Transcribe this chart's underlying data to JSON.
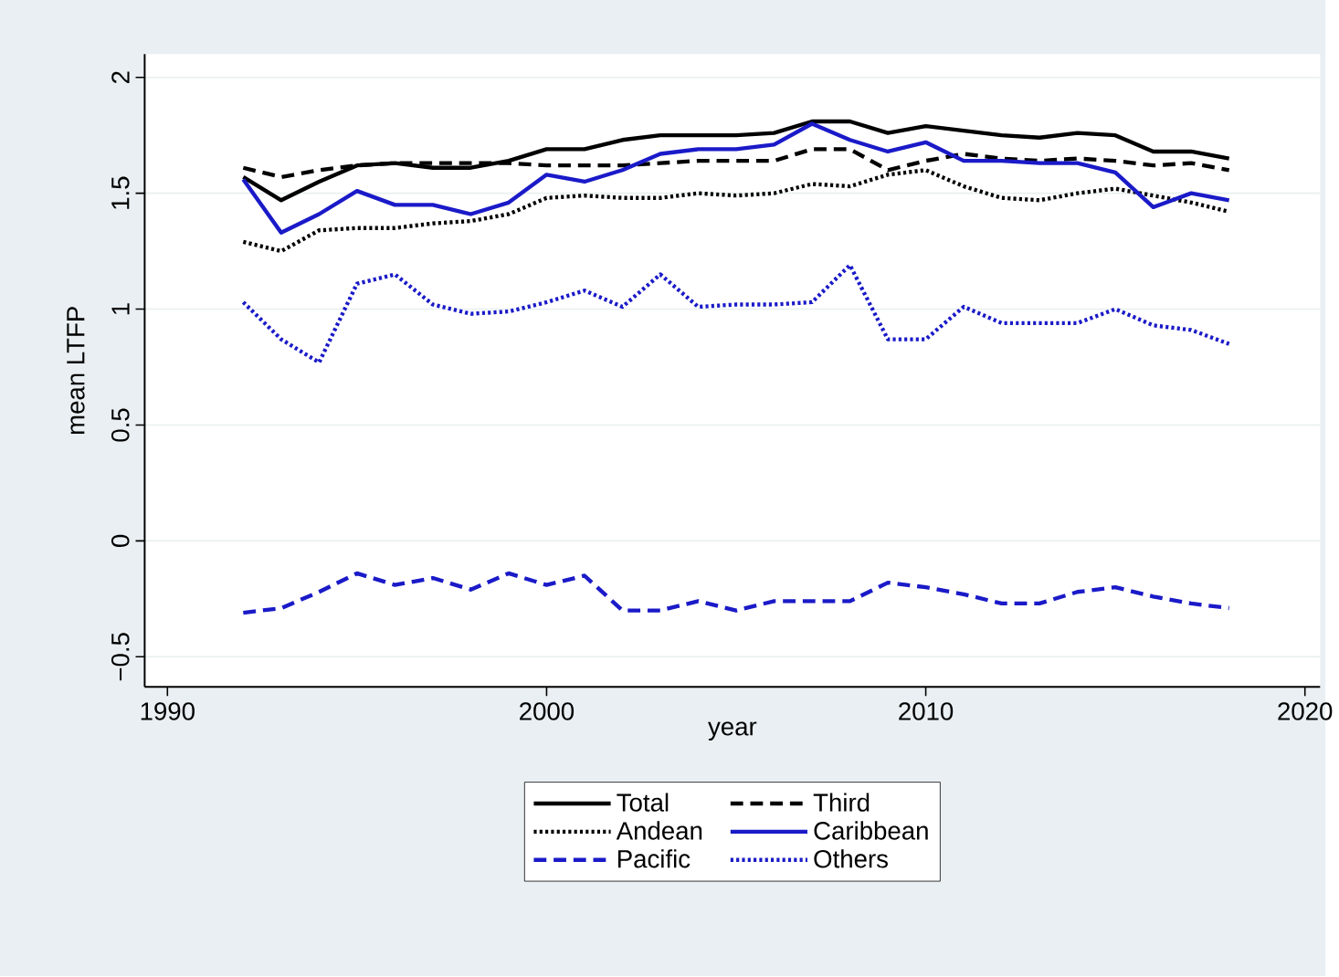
{
  "chart_data": {
    "type": "line",
    "xlabel": "year",
    "ylabel": "mean LTFP",
    "x": [
      1992,
      1993,
      1994,
      1995,
      1996,
      1997,
      1998,
      1999,
      2000,
      2001,
      2002,
      2003,
      2004,
      2005,
      2006,
      2007,
      2008,
      2009,
      2010,
      2011,
      2012,
      2013,
      2014,
      2015,
      2016,
      2017,
      2018
    ],
    "series": [
      {
        "name": "Total",
        "color": "#000000",
        "line_style": "solid",
        "values": [
          1.57,
          1.47,
          1.55,
          1.62,
          1.63,
          1.61,
          1.61,
          1.64,
          1.69,
          1.69,
          1.73,
          1.75,
          1.75,
          1.75,
          1.76,
          1.81,
          1.81,
          1.76,
          1.79,
          1.77,
          1.75,
          1.74,
          1.76,
          1.75,
          1.68,
          1.68,
          1.65
        ]
      },
      {
        "name": "Third",
        "color": "#000000",
        "line_style": "dashed",
        "values": [
          1.61,
          1.57,
          1.6,
          1.62,
          1.63,
          1.63,
          1.63,
          1.63,
          1.62,
          1.62,
          1.62,
          1.63,
          1.64,
          1.64,
          1.64,
          1.69,
          1.69,
          1.6,
          1.64,
          1.67,
          1.65,
          1.64,
          1.65,
          1.64,
          1.62,
          1.63,
          1.6
        ]
      },
      {
        "name": "Andean",
        "color": "#000000",
        "line_style": "dotted",
        "values": [
          1.29,
          1.25,
          1.34,
          1.35,
          1.35,
          1.37,
          1.38,
          1.41,
          1.48,
          1.49,
          1.48,
          1.48,
          1.5,
          1.49,
          1.5,
          1.54,
          1.53,
          1.58,
          1.6,
          1.53,
          1.48,
          1.47,
          1.5,
          1.52,
          1.49,
          1.46,
          1.42
        ]
      },
      {
        "name": "Caribbean",
        "color": "#1a1ac8",
        "line_style": "solid",
        "values": [
          1.56,
          1.33,
          1.41,
          1.51,
          1.45,
          1.45,
          1.41,
          1.46,
          1.58,
          1.55,
          1.6,
          1.67,
          1.69,
          1.69,
          1.71,
          1.8,
          1.73,
          1.68,
          1.72,
          1.64,
          1.64,
          1.63,
          1.63,
          1.59,
          1.44,
          1.5,
          1.47
        ]
      },
      {
        "name": "Pacific",
        "color": "#1a1ac8",
        "line_style": "dashed",
        "values": [
          -0.31,
          -0.29,
          -0.22,
          -0.14,
          -0.19,
          -0.16,
          -0.21,
          -0.14,
          -0.19,
          -0.15,
          -0.3,
          -0.3,
          -0.26,
          -0.3,
          -0.26,
          -0.26,
          -0.26,
          -0.18,
          -0.2,
          -0.23,
          -0.27,
          -0.27,
          -0.22,
          -0.2,
          -0.24,
          -0.27,
          -0.29
        ]
      },
      {
        "name": "Others",
        "color": "#1a1ac8",
        "line_style": "dotted",
        "values": [
          1.03,
          0.87,
          0.77,
          1.11,
          1.15,
          1.02,
          0.98,
          0.99,
          1.03,
          1.08,
          1.01,
          1.15,
          1.01,
          1.02,
          1.02,
          1.03,
          1.19,
          0.87,
          0.87,
          1.01,
          0.94,
          0.94,
          0.94,
          1.0,
          0.93,
          0.91,
          0.85
        ]
      }
    ],
    "xlim": [
      1989.4,
      2020.4
    ],
    "ylim": [
      -0.63,
      2.1
    ],
    "xticks": [
      1990,
      2000,
      2010,
      2020
    ],
    "yticks": [
      {
        "value": -0.5,
        "label": "−0.5"
      },
      0,
      0.5,
      1,
      1.5,
      2
    ],
    "grid": "y",
    "legend": "bottom"
  }
}
